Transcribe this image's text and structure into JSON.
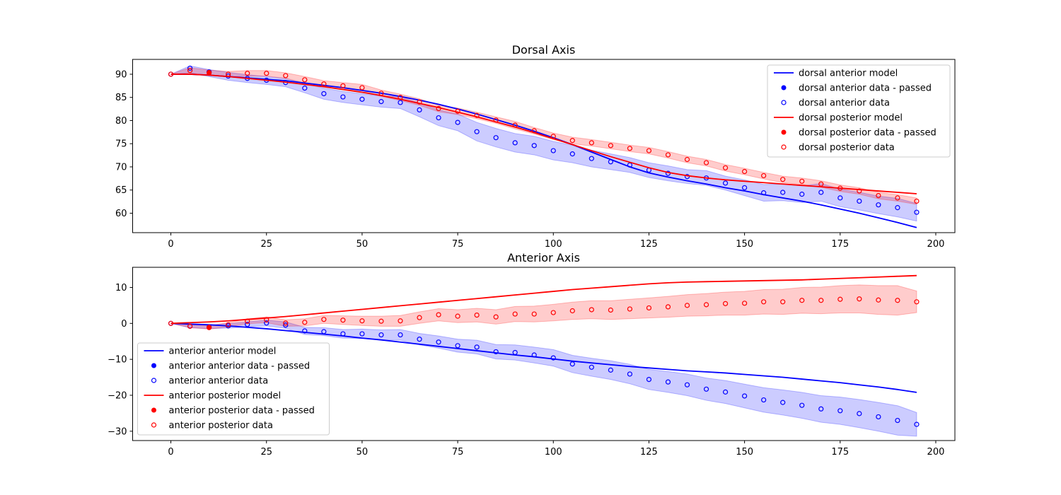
{
  "colors": {
    "anterior": "#0000ff",
    "posterior": "#ff0000",
    "anterior_band": "#0000ff",
    "posterior_band": "#ff0000"
  },
  "chart_data": [
    {
      "type": "line",
      "title": "Dorsal Axis",
      "xlabel": "",
      "ylabel": "",
      "xlim": [
        -10,
        205
      ],
      "ylim": [
        55.8,
        93.2
      ],
      "xticks": [
        0,
        25,
        50,
        75,
        100,
        125,
        150,
        175,
        200
      ],
      "yticks": [
        60,
        65,
        70,
        75,
        80,
        85,
        90
      ],
      "legend_position": "upper right",
      "legend": [
        "dorsal anterior model",
        "dorsal anterior data - passed",
        "dorsal anterior data",
        "dorsal posterior model",
        "dorsal posterior data - passed",
        "dorsal posterior data"
      ],
      "x": [
        0,
        5,
        10,
        15,
        20,
        25,
        30,
        35,
        40,
        45,
        50,
        55,
        60,
        65,
        70,
        75,
        80,
        85,
        90,
        95,
        100,
        105,
        110,
        115,
        120,
        125,
        130,
        135,
        140,
        145,
        150,
        155,
        160,
        165,
        170,
        175,
        180,
        185,
        190,
        195
      ],
      "series": [
        {
          "name": "dorsal anterior model",
          "color_key": "anterior",
          "model": [
            90,
            90,
            89.8,
            89.5,
            89.2,
            88.9,
            88.6,
            88.1,
            87.6,
            87.1,
            86.5,
            85.9,
            85.2,
            84.4,
            83.5,
            82.5,
            81.4,
            80.2,
            79.0,
            77.7,
            76.3,
            74.8,
            73.2,
            71.6,
            70.0,
            68.7,
            67.8,
            67.0,
            66.3,
            65.5,
            64.8,
            64.0,
            63.3,
            62.6,
            61.8,
            60.9,
            60.0,
            59.0,
            58.0,
            56.9
          ],
          "data": [
            90,
            91.3,
            90.5,
            89.6,
            89.1,
            88.7,
            88.2,
            87.0,
            85.8,
            85.1,
            84.6,
            84.1,
            83.9,
            82.3,
            80.6,
            79.6,
            77.6,
            76.3,
            75.2,
            74.6,
            73.5,
            72.8,
            71.8,
            71.1,
            70.4,
            69.3,
            68.6,
            67.9,
            67.6,
            66.5,
            65.5,
            64.4,
            64.5,
            64.1,
            64.5,
            63.3,
            62.6,
            61.8,
            61.2,
            60.2
          ],
          "band_lower": [
            90,
            90.3,
            89.5,
            88.7,
            88.2,
            87.8,
            87.3,
            86.0,
            84.6,
            83.9,
            83.4,
            82.9,
            82.6,
            80.8,
            78.9,
            77.8,
            75.6,
            74.3,
            73.2,
            72.6,
            71.5,
            70.9,
            70.0,
            69.4,
            68.8,
            67.7,
            67.0,
            66.4,
            66.0,
            65.0,
            63.8,
            62.6,
            62.7,
            62.3,
            62.6,
            61.4,
            60.7,
            59.9,
            59.2,
            58.3
          ],
          "band_upper": [
            90,
            91.8,
            91.0,
            90.4,
            89.9,
            89.5,
            89.1,
            88.0,
            87.0,
            86.3,
            85.8,
            85.3,
            85.2,
            83.8,
            82.3,
            81.4,
            79.6,
            78.3,
            77.2,
            76.6,
            75.5,
            74.7,
            73.6,
            72.8,
            72.0,
            70.9,
            70.2,
            69.4,
            69.2,
            68.0,
            67.2,
            66.2,
            66.3,
            65.9,
            66.4,
            65.2,
            64.5,
            63.7,
            63.2,
            62.1
          ],
          "passed": [
            {
              "x": 10,
              "y": 90.5
            }
          ]
        },
        {
          "name": "dorsal posterior model",
          "color_key": "posterior",
          "model": [
            90,
            90,
            89.8,
            89.5,
            89.1,
            88.7,
            88.3,
            87.8,
            87.3,
            86.7,
            86.1,
            85.4,
            84.6,
            83.7,
            82.8,
            81.8,
            80.8,
            79.7,
            78.6,
            77.4,
            76.1,
            74.8,
            73.5,
            72.2,
            71.0,
            69.8,
            68.8,
            68.1,
            67.6,
            67.2,
            66.9,
            66.6,
            66.3,
            66.0,
            65.7,
            65.4,
            65.1,
            64.8,
            64.5,
            64.2
          ],
          "data": [
            90,
            90.8,
            90.3,
            90.0,
            90.2,
            90.2,
            89.7,
            88.8,
            87.9,
            87.5,
            87.1,
            85.9,
            85.0,
            84.0,
            82.6,
            82.0,
            81.1,
            80.1,
            79.0,
            77.8,
            76.6,
            75.7,
            75.2,
            74.6,
            74.0,
            73.5,
            72.6,
            71.6,
            70.9,
            69.8,
            69.0,
            68.1,
            67.3,
            66.9,
            66.3,
            65.4,
            64.8,
            63.8,
            63.3,
            62.6
          ],
          "band_lower": [
            90,
            90.2,
            89.7,
            89.4,
            89.6,
            89.6,
            89.1,
            88.1,
            87.2,
            86.8,
            86.4,
            85.2,
            84.3,
            83.3,
            81.9,
            81.3,
            80.4,
            79.4,
            78.2,
            77.1,
            75.9,
            75.0,
            74.5,
            73.9,
            73.3,
            72.8,
            71.9,
            70.9,
            70.2,
            69.1,
            68.3,
            67.4,
            66.6,
            66.2,
            65.6,
            64.7,
            64.1,
            63.1,
            62.6,
            61.9
          ],
          "band_upper": [
            90,
            91.4,
            90.9,
            90.6,
            90.8,
            90.8,
            90.3,
            89.5,
            88.6,
            88.2,
            87.8,
            86.6,
            85.7,
            84.7,
            83.3,
            82.7,
            81.8,
            80.8,
            79.8,
            78.5,
            77.3,
            76.4,
            75.9,
            75.3,
            74.7,
            74.2,
            73.3,
            72.3,
            71.6,
            70.5,
            69.7,
            68.8,
            68.0,
            67.6,
            67.0,
            66.1,
            65.5,
            64.5,
            64.0,
            63.3
          ],
          "passed": [
            {
              "x": 10,
              "y": 90.4
            }
          ]
        }
      ]
    },
    {
      "type": "line",
      "title": "Anterior Axis",
      "xlabel": "",
      "ylabel": "",
      "xlim": [
        -10,
        205
      ],
      "ylim": [
        -32.6,
        15.6
      ],
      "xticks": [
        0,
        25,
        50,
        75,
        100,
        125,
        150,
        175,
        200
      ],
      "yticks": [
        -30,
        -20,
        -10,
        0,
        10
      ],
      "legend_position": "lower left",
      "legend": [
        "anterior anterior model",
        "anterior anterior data - passed",
        "anterior anterior data",
        "anterior posterior model",
        "anterior posterior data - passed",
        "anterior posterior data"
      ],
      "x": [
        0,
        5,
        10,
        15,
        20,
        25,
        30,
        35,
        40,
        45,
        50,
        55,
        60,
        65,
        70,
        75,
        80,
        85,
        90,
        95,
        100,
        105,
        110,
        115,
        120,
        125,
        130,
        135,
        140,
        145,
        150,
        155,
        160,
        165,
        170,
        175,
        180,
        185,
        190,
        195
      ],
      "series": [
        {
          "name": "anterior anterior model",
          "color_key": "anterior",
          "model": [
            0,
            -0.2,
            -0.4,
            -0.7,
            -1.1,
            -1.5,
            -2.0,
            -2.5,
            -3.0,
            -3.5,
            -4.1,
            -4.6,
            -5.2,
            -5.8,
            -6.4,
            -7.0,
            -7.6,
            -8.2,
            -8.8,
            -9.3,
            -9.9,
            -10.5,
            -11.0,
            -11.5,
            -12.0,
            -12.4,
            -12.8,
            -13.2,
            -13.5,
            -13.8,
            -14.2,
            -14.6,
            -15.0,
            -15.5,
            -16.0,
            -16.5,
            -17.1,
            -17.7,
            -18.4,
            -19.2
          ],
          "data": [
            0,
            -0.8,
            -1.0,
            -0.7,
            -0.3,
            0.1,
            -0.5,
            -2.1,
            -2.3,
            -2.9,
            -2.9,
            -3.2,
            -3.2,
            -4.4,
            -5.2,
            -6.2,
            -6.6,
            -7.9,
            -8.1,
            -8.8,
            -9.6,
            -11.3,
            -12.2,
            -13.0,
            -14.1,
            -15.6,
            -16.3,
            -17.1,
            -18.3,
            -19.1,
            -20.2,
            -21.3,
            -22.0,
            -22.8,
            -23.8,
            -24.3,
            -25.1,
            -26.0,
            -27.0,
            -28.1
          ],
          "band_lower": [
            0,
            -1.2,
            -1.5,
            -1.3,
            -1.0,
            -0.7,
            -1.4,
            -3.1,
            -3.4,
            -4.1,
            -4.2,
            -4.6,
            -4.7,
            -6.0,
            -6.9,
            -8.0,
            -8.5,
            -9.9,
            -10.2,
            -11.0,
            -11.9,
            -13.7,
            -14.7,
            -15.6,
            -16.8,
            -18.4,
            -19.2,
            -20.1,
            -21.4,
            -22.3,
            -23.5,
            -24.7,
            -25.5,
            -26.4,
            -27.5,
            -28.1,
            -29.0,
            -30.0,
            -31.1,
            -31.4
          ],
          "band_upper": [
            0,
            -0.4,
            -0.5,
            -0.1,
            0.4,
            0.9,
            0.4,
            -1.1,
            -1.2,
            -1.7,
            -1.6,
            -1.8,
            -1.7,
            -2.8,
            -3.5,
            -4.4,
            -4.7,
            -5.9,
            -6.0,
            -6.6,
            -7.3,
            -8.9,
            -9.7,
            -10.4,
            -11.4,
            -12.8,
            -13.4,
            -14.1,
            -15.2,
            -15.9,
            -16.9,
            -17.9,
            -18.5,
            -19.2,
            -20.1,
            -20.5,
            -21.2,
            -22.0,
            -22.9,
            -24.8
          ],
          "passed": [
            {
              "x": 10,
              "y": -1.1
            }
          ]
        },
        {
          "name": "anterior posterior model",
          "color_key": "posterior",
          "model": [
            0,
            0.2,
            0.4,
            0.7,
            1.1,
            1.5,
            1.9,
            2.4,
            2.9,
            3.4,
            3.9,
            4.4,
            4.9,
            5.4,
            5.9,
            6.4,
            6.9,
            7.4,
            7.9,
            8.4,
            8.9,
            9.4,
            9.8,
            10.2,
            10.6,
            11.0,
            11.3,
            11.5,
            11.6,
            11.7,
            11.8,
            11.9,
            12.0,
            12.1,
            12.3,
            12.5,
            12.7,
            12.9,
            13.1,
            13.3
          ],
          "data": [
            0,
            -0.8,
            -1.1,
            -0.4,
            0.6,
            1.0,
            0.1,
            0.3,
            1.1,
            0.9,
            0.7,
            0.6,
            0.7,
            1.6,
            2.4,
            2.0,
            2.3,
            1.8,
            2.6,
            2.6,
            3.0,
            3.5,
            3.8,
            3.7,
            4.0,
            4.3,
            4.6,
            5.0,
            5.2,
            5.5,
            5.6,
            6.0,
            6.0,
            6.4,
            6.4,
            6.7,
            6.8,
            6.5,
            6.4,
            6.0
          ],
          "band_lower": [
            0,
            -1.2,
            -1.6,
            -1.0,
            -0.1,
            0.2,
            -0.8,
            -0.7,
            0.0,
            -0.3,
            -0.6,
            -0.8,
            -0.8,
            0.0,
            0.7,
            0.2,
            0.4,
            -0.2,
            0.5,
            0.4,
            0.7,
            1.1,
            1.3,
            1.1,
            1.3,
            1.5,
            1.7,
            2.0,
            2.1,
            2.3,
            2.3,
            2.6,
            2.5,
            2.8,
            2.7,
            2.9,
            2.9,
            2.5,
            2.3,
            3.0
          ],
          "band_upper": [
            0,
            -0.4,
            -0.6,
            0.2,
            1.3,
            1.8,
            1.0,
            1.3,
            2.2,
            2.1,
            2.0,
            2.0,
            2.2,
            3.2,
            4.1,
            3.8,
            4.2,
            3.8,
            4.7,
            4.8,
            5.3,
            5.9,
            6.3,
            6.3,
            6.7,
            7.1,
            7.5,
            8.0,
            8.3,
            8.7,
            8.9,
            9.4,
            9.5,
            10.0,
            10.1,
            10.5,
            10.7,
            10.5,
            10.5,
            9.0
          ],
          "passed": [
            {
              "x": 10,
              "y": -1.2
            }
          ]
        }
      ]
    }
  ]
}
